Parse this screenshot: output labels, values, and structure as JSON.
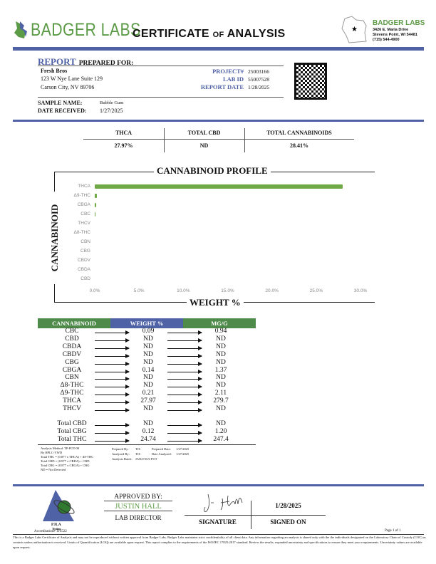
{
  "header": {
    "brand": "BADGER LABS",
    "title_main": "CERTIFICATE",
    "title_of": "OF",
    "title_end": "ANALYSIS",
    "lab_name": "BADGER LABS",
    "lab_addr1": "3426 E. Maria Drive",
    "lab_addr2": "Stevens Point, WI 54481",
    "lab_phone": "(715) 544-4900"
  },
  "client": {
    "report_label": "REPORT",
    "prepared_for": "PREPARED FOR:",
    "name": "Fresh Bros",
    "addr1": "123 W Nye Lane Suite 129",
    "addr2": "Carson City, NV 89706"
  },
  "meta": {
    "project_label": "PROJECT#",
    "project": "25003166",
    "labid_label": "LAB ID",
    "labid": "55007528",
    "date_label": "REPORT DATE",
    "date": "1/28/2025"
  },
  "sample": {
    "name_label": "SAMPLE NAME:",
    "name": "Bubble Gum",
    "received_label": "DATE RECEIVED:",
    "received": "1/27/2025"
  },
  "summary": {
    "headers": [
      "THCA",
      "TOTAL CBD",
      "TOTAL CANNABINOIDS"
    ],
    "values": [
      "27.97%",
      "ND",
      "28.41%"
    ]
  },
  "chart_data": {
    "type": "bar",
    "orientation": "horizontal",
    "title": "CANNABINOID PROFILE",
    "xlabel": "WEIGHT %",
    "ylabel": "CANNABINOID",
    "categories": [
      "THCA",
      "Δ9-THC",
      "CBGA",
      "CBC",
      "THCV",
      "Δ8-THC",
      "CBN",
      "CBG",
      "CBDV",
      "CBDA",
      "CBD"
    ],
    "values": [
      27.97,
      0.21,
      0.14,
      0.09,
      0,
      0,
      0,
      0,
      0,
      0,
      0
    ],
    "xlim": [
      0,
      30
    ],
    "xticks": [
      "0.0%",
      "5.0%",
      "10.0%",
      "15.0%",
      "20.0%",
      "25.0%",
      "30.0%"
    ],
    "color": "#6fa844",
    "grid": false
  },
  "table": {
    "headers": [
      "CANNABINOID",
      "WEIGHT %",
      "MG/G"
    ],
    "header_colors": [
      "#4e8a4a",
      "#4f62a6",
      "#4e8a4a"
    ],
    "rows": [
      [
        "CBC",
        "0.09",
        "0.94"
      ],
      [
        "CBD",
        "ND",
        "ND"
      ],
      [
        "CBDA",
        "ND",
        "ND"
      ],
      [
        "CBDV",
        "ND",
        "ND"
      ],
      [
        "CBG",
        "ND",
        "ND"
      ],
      [
        "CBGA",
        "0.14",
        "1.37"
      ],
      [
        "CBN",
        "ND",
        "ND"
      ],
      [
        "Δ8-THC",
        "ND",
        "ND"
      ],
      [
        "Δ9-THC",
        "0.21",
        "2.11"
      ],
      [
        "THCA",
        "27.97",
        "279.7"
      ],
      [
        "THCV",
        "ND",
        "ND"
      ]
    ],
    "totals": [
      [
        "Total CBD",
        "ND",
        "ND"
      ],
      [
        "Total CBG",
        "0.12",
        "1.20"
      ],
      [
        "Total THC",
        "24.74",
        "247.4"
      ]
    ]
  },
  "notes": {
    "lines": [
      "Analysis Method: TP-POT-08",
      "By HPLC-VWD",
      "Total THC = (0.877 x THCA) + Δ9-THC",
      "Total CBD = (0.877 x CBDA) + CBD",
      "Total CBG = (0.877 x CBGA) + CBG",
      "ND = Not Detected"
    ],
    "prepared_by_label": "Prepared By:",
    "prepared_by": "TJS",
    "prepared_date_label": "Prepared Date:",
    "prepared_date": "1/27/2025",
    "analyzed_by_label": "Analyzed By:",
    "analyzed_by": "TJS",
    "date_analyzed_label": "Date Analyzed:",
    "date_analyzed": "1/27/2025",
    "batch_label": "Analysis Batch:",
    "batch": "JAN2725A-POT"
  },
  "footer": {
    "pjla": "PJLA",
    "testing": "Testing",
    "accreditation": "Accreditation# 115522",
    "approved_by": "APPROVED BY:",
    "approver": "JUSTIN HALL",
    "approver_title": "LAB DIRECTOR",
    "signature_label": "SIGNATURE",
    "signed_on_label": "SIGNED ON",
    "signed_on": "1/28/2025",
    "page": "Page 1 of 1",
    "disclaimer": "This is a Badger Labs Certificate of Analysis and may not be reproduced without written approval from Badger Labs. Badger Labs maintains strict confidentiality of all client data. Any information regarding an analysis is shared only with the the individuals designated on the Laboratory Chain of Custody (COC) as contacts unless authorization is received. Limits of Quantification (LOQ) are available upon request. This report complies to the requirements of the ISO/IEC 17025:2017 standard. Review the results, expanded uncertainty and specifications to ensure they meet your requirements. Uncertainty values are available upon request."
  }
}
